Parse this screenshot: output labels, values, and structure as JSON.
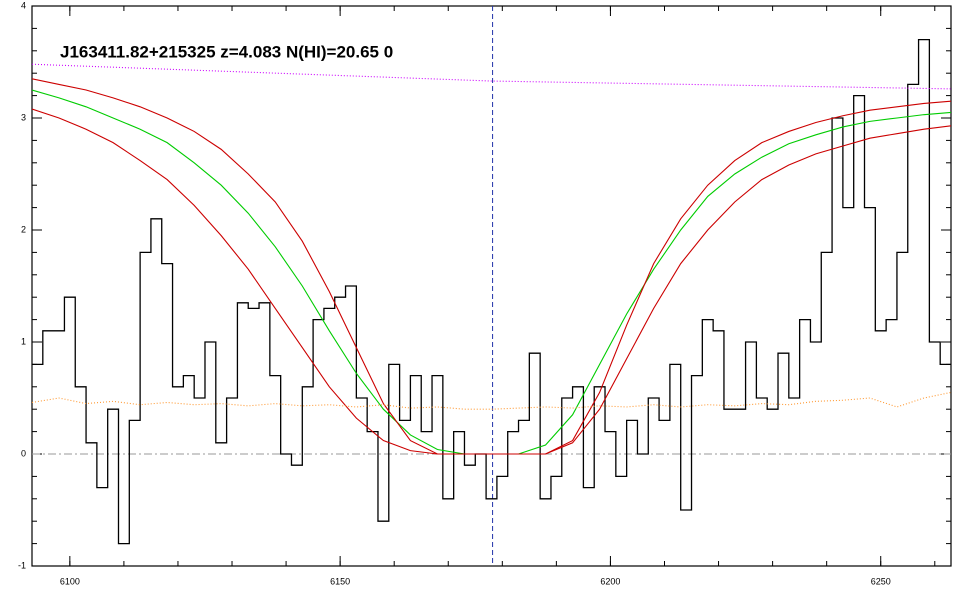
{
  "chart_data": {
    "type": "line",
    "title": "J163411.82+215325 z=4.083 N(HI)=20.65 0",
    "xlim": [
      6093,
      6263
    ],
    "ylim": [
      -1,
      4
    ],
    "xticks": [
      6100,
      6150,
      6200,
      6250
    ],
    "yticks": [
      -1,
      0,
      1,
      2,
      3,
      4
    ],
    "vline": 6178.2,
    "hline": 0,
    "series": [
      {
        "color": "#000000",
        "step": true,
        "x": [
          6094,
          6096,
          6098,
          6100,
          6102,
          6104,
          6106,
          6108,
          6110,
          6112,
          6114,
          6116,
          6118,
          6120,
          6122,
          6124,
          6126,
          6128,
          6130,
          6132,
          6134,
          6136,
          6138,
          6140,
          6142,
          6144,
          6146,
          6148,
          6150,
          6152,
          6154,
          6156,
          6158,
          6160,
          6162,
          6164,
          6166,
          6168,
          6170,
          6172,
          6174,
          6176,
          6178,
          6180,
          6182,
          6184,
          6186,
          6188,
          6190,
          6192,
          6194,
          6196,
          6198,
          6200,
          6202,
          6204,
          6206,
          6208,
          6210,
          6212,
          6214,
          6216,
          6218,
          6220,
          6222,
          6224,
          6226,
          6228,
          6230,
          6232,
          6234,
          6236,
          6238,
          6240,
          6242,
          6244,
          6246,
          6248,
          6250,
          6252,
          6254,
          6256,
          6258,
          6260,
          6262
        ],
        "values": [
          0.8,
          1.1,
          1.1,
          1.4,
          0.6,
          0.1,
          -0.3,
          0.4,
          -0.8,
          0.3,
          1.8,
          2.1,
          1.7,
          0.6,
          0.7,
          0.5,
          1.0,
          0.1,
          0.5,
          1.35,
          1.3,
          1.35,
          0.7,
          0.0,
          -0.1,
          0.6,
          1.2,
          1.3,
          1.4,
          1.5,
          0.5,
          0.2,
          -0.6,
          0.8,
          0.3,
          0.7,
          0.2,
          0.7,
          -0.4,
          0.2,
          -0.1,
          0.0,
          -0.4,
          -0.2,
          0.2,
          0.3,
          0.9,
          -0.4,
          -0.2,
          0.5,
          0.6,
          -0.3,
          0.6,
          0.2,
          -0.2,
          0.3,
          0.0,
          0.5,
          0.3,
          0.8,
          -0.5,
          0.7,
          1.2,
          1.1,
          0.4,
          0.4,
          1.0,
          0.5,
          0.4,
          0.9,
          0.5,
          1.2,
          1.0,
          1.8,
          3.0,
          2.2,
          3.2,
          2.2,
          1.1,
          1.2,
          1.8,
          3.3,
          3.7,
          1.0,
          0.8
        ]
      },
      {
        "color": "#00cc00",
        "x": [
          6093,
          6098,
          6103,
          6108,
          6113,
          6118,
          6123,
          6128,
          6133,
          6138,
          6143,
          6148,
          6153,
          6158,
          6163,
          6168,
          6173,
          6178,
          6183,
          6188,
          6193,
          6198,
          6203,
          6208,
          6213,
          6218,
          6223,
          6228,
          6233,
          6238,
          6243,
          6248,
          6253,
          6258,
          6263
        ],
        "values": [
          3.25,
          3.18,
          3.1,
          3.0,
          2.9,
          2.78,
          2.6,
          2.4,
          2.15,
          1.85,
          1.5,
          1.1,
          0.72,
          0.4,
          0.17,
          0.04,
          0.0,
          0.0,
          0.0,
          0.08,
          0.35,
          0.8,
          1.25,
          1.65,
          2.0,
          2.3,
          2.5,
          2.65,
          2.77,
          2.85,
          2.92,
          2.97,
          3.0,
          3.03,
          3.05
        ]
      },
      {
        "color": "#cc0000",
        "x": [
          6093,
          6098,
          6103,
          6108,
          6113,
          6118,
          6123,
          6128,
          6133,
          6138,
          6143,
          6148,
          6153,
          6158,
          6163,
          6168,
          6173,
          6178,
          6183,
          6188,
          6193,
          6198,
          6203,
          6208,
          6213,
          6218,
          6223,
          6228,
          6233,
          6238,
          6243,
          6248,
          6253,
          6258,
          6263
        ],
        "values": [
          3.35,
          3.3,
          3.25,
          3.18,
          3.1,
          3.0,
          2.88,
          2.72,
          2.5,
          2.25,
          1.9,
          1.45,
          0.95,
          0.45,
          0.12,
          0.0,
          0.0,
          0.0,
          0.0,
          0.0,
          0.12,
          0.55,
          1.15,
          1.7,
          2.1,
          2.4,
          2.62,
          2.78,
          2.88,
          2.96,
          3.02,
          3.07,
          3.1,
          3.13,
          3.15
        ]
      },
      {
        "color": "#cc0000",
        "x": [
          6093,
          6098,
          6103,
          6108,
          6113,
          6118,
          6123,
          6128,
          6133,
          6138,
          6143,
          6148,
          6153,
          6158,
          6163,
          6168,
          6173,
          6178,
          6183,
          6188,
          6193,
          6198,
          6203,
          6208,
          6213,
          6218,
          6223,
          6228,
          6233,
          6238,
          6243,
          6248,
          6253,
          6258,
          6263
        ],
        "values": [
          3.08,
          3.0,
          2.9,
          2.78,
          2.62,
          2.45,
          2.22,
          1.95,
          1.65,
          1.3,
          0.95,
          0.6,
          0.32,
          0.12,
          0.03,
          0.0,
          0.0,
          0.0,
          0.0,
          0.0,
          0.1,
          0.4,
          0.85,
          1.3,
          1.7,
          2.0,
          2.25,
          2.45,
          2.58,
          2.68,
          2.75,
          2.82,
          2.86,
          2.9,
          2.93
        ]
      },
      {
        "color": "#cc00ff",
        "dotted": true,
        "x": [
          6093,
          6178,
          6263
        ],
        "values": [
          3.48,
          3.33,
          3.26
        ]
      },
      {
        "color": "#ff9933",
        "dotted": true,
        "x": [
          6093,
          6098,
          6103,
          6108,
          6113,
          6118,
          6123,
          6128,
          6133,
          6138,
          6143,
          6148,
          6153,
          6158,
          6163,
          6168,
          6173,
          6178,
          6183,
          6188,
          6193,
          6198,
          6203,
          6208,
          6213,
          6218,
          6223,
          6228,
          6233,
          6238,
          6243,
          6248,
          6253,
          6258,
          6263
        ],
        "values": [
          0.46,
          0.5,
          0.45,
          0.47,
          0.44,
          0.46,
          0.44,
          0.45,
          0.43,
          0.45,
          0.43,
          0.44,
          0.42,
          0.44,
          0.41,
          0.42,
          0.4,
          0.4,
          0.41,
          0.42,
          0.41,
          0.43,
          0.42,
          0.44,
          0.42,
          0.44,
          0.43,
          0.45,
          0.44,
          0.47,
          0.48,
          0.5,
          0.42,
          0.5,
          0.55
        ]
      }
    ]
  }
}
